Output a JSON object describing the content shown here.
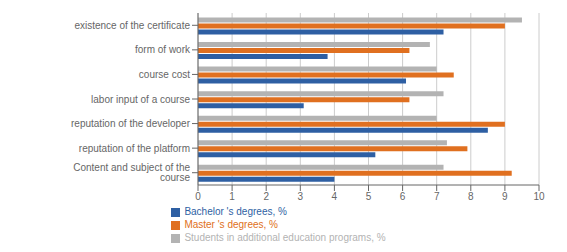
{
  "chart_data": {
    "type": "bar",
    "orientation": "horizontal",
    "categories": [
      "existence of the certificate",
      "form of work",
      "course cost",
      "labor input of a course",
      "reputation of the developer",
      "reputation of the platform",
      "Content and subject of the course"
    ],
    "series": [
      {
        "name": "Students in additional education programs, %",
        "color": "#b3b3b3",
        "values": [
          9.5,
          6.8,
          7.0,
          7.2,
          7.0,
          7.3,
          7.2
        ]
      },
      {
        "name": "Master 's degrees, %",
        "color": "#e07020",
        "values": [
          9.0,
          6.2,
          7.5,
          6.2,
          9.0,
          7.9,
          9.2
        ]
      },
      {
        "name": "Bachelor 's degrees, %",
        "color": "#2e5fa3",
        "values": [
          7.2,
          3.8,
          6.1,
          3.1,
          8.5,
          5.2,
          4.0
        ]
      }
    ],
    "xlim": [
      0,
      10
    ],
    "xticks": [
      0,
      1,
      2,
      3,
      4,
      5,
      6,
      7,
      8,
      9,
      10
    ],
    "grid": true,
    "legend": "bottom"
  }
}
